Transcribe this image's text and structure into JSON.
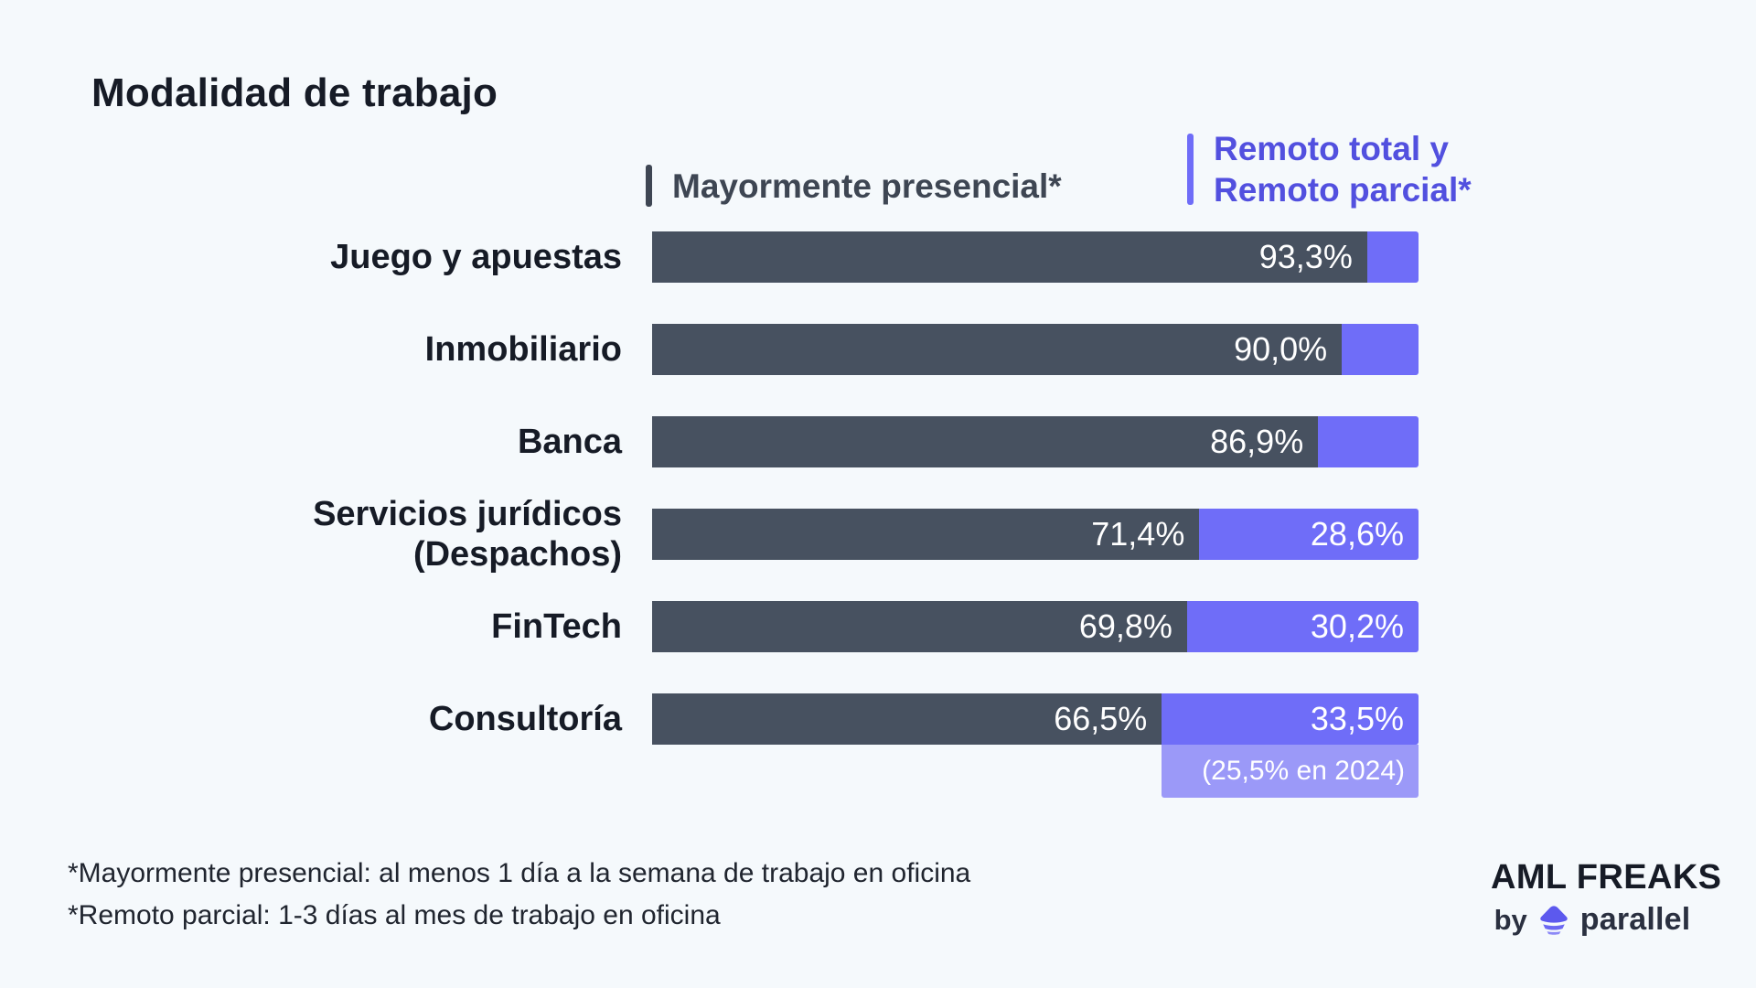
{
  "title": "Modalidad de trabajo",
  "colors": {
    "background": "#f5f9fc",
    "presencial": "#475160",
    "remoto": "#6f6df8",
    "remoto_light": "#9b99f8",
    "legend_presencial_text": "#3e4653",
    "legend_remoto_text": "#5250df",
    "text_dark": "#161b26",
    "footnote_text": "#20252f",
    "value_text": "#ffffff",
    "logo_purple": "#5c59ee"
  },
  "legend": {
    "presencial": {
      "label": "Mayormente presencial*"
    },
    "remoto": {
      "line1": "Remoto total y",
      "line2": "Remoto parcial*"
    }
  },
  "chart_data": {
    "type": "bar",
    "orientation": "horizontal",
    "stacked": true,
    "unit": "percent",
    "xlim": [
      0,
      100
    ],
    "grid": false,
    "legend_position": "top",
    "title": "Modalidad de trabajo",
    "categories": [
      "Juego y apuestas",
      "Inmobiliario",
      "Banca",
      "Servicios jurídicos (Despachos)",
      "FinTech",
      "Consultoría"
    ],
    "series": [
      {
        "name": "Mayormente presencial*",
        "color": "#475160",
        "values": [
          93.3,
          90.0,
          86.9,
          71.4,
          69.8,
          66.5
        ]
      },
      {
        "name": "Remoto total y Remoto parcial*",
        "color": "#6f6df8",
        "values": [
          6.7,
          10.0,
          13.1,
          28.6,
          30.2,
          33.5
        ]
      }
    ],
    "rows": [
      {
        "category_lines": [
          "Juego y apuestas"
        ],
        "presencial_value": 93.3,
        "presencial_label": "93,3%",
        "remoto_value": 6.7,
        "remoto_label": "",
        "note": ""
      },
      {
        "category_lines": [
          "Inmobiliario"
        ],
        "presencial_value": 90.0,
        "presencial_label": "90,0%",
        "remoto_value": 10.0,
        "remoto_label": "",
        "note": ""
      },
      {
        "category_lines": [
          "Banca"
        ],
        "presencial_value": 86.9,
        "presencial_label": "86,9%",
        "remoto_value": 13.1,
        "remoto_label": "",
        "note": ""
      },
      {
        "category_lines": [
          "Servicios jurídicos",
          "(Despachos)"
        ],
        "presencial_value": 71.4,
        "presencial_label": "71,4%",
        "remoto_value": 28.6,
        "remoto_label": "28,6%",
        "note": ""
      },
      {
        "category_lines": [
          "FinTech"
        ],
        "presencial_value": 69.8,
        "presencial_label": "69,8%",
        "remoto_value": 30.2,
        "remoto_label": "30,2%",
        "note": ""
      },
      {
        "category_lines": [
          "Consultoría"
        ],
        "presencial_value": 66.5,
        "presencial_label": "66,5%",
        "remoto_value": 33.5,
        "remoto_label": "33,5%",
        "note": "(25,5% en 2024)"
      }
    ]
  },
  "footnotes": {
    "line1": "*Mayormente presencial: al menos 1 día a la semana de trabajo en oficina",
    "line2": "*Remoto parcial: 1-3 días al mes de trabajo en oficina"
  },
  "brand": {
    "name": "AML FREAKS",
    "byline_prefix": "by",
    "byline_brand": "parallel",
    "logo_icon": "parallel-layered-diamond-icon"
  }
}
